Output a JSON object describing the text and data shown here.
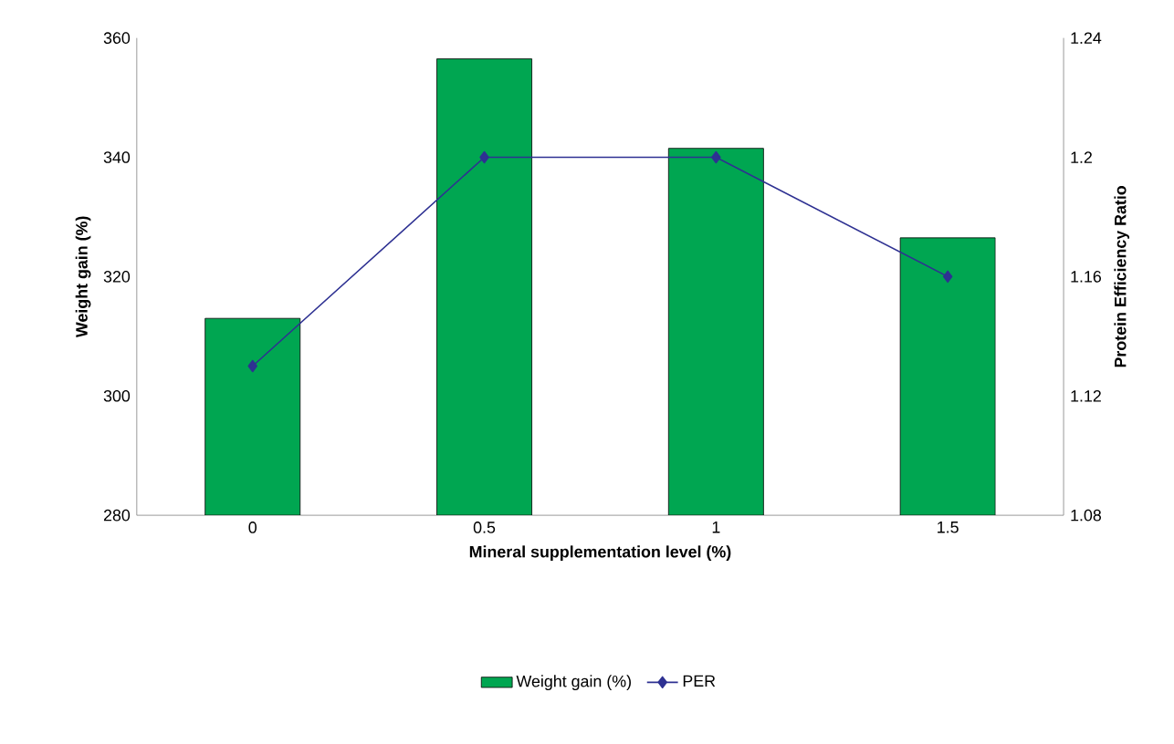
{
  "chart_data": {
    "type": "bar",
    "xlabel": "Mineral supplementation level (%)",
    "ylabel": "Weight gain (%)",
    "y2label": "Protein Efficiency Ratio",
    "categories": [
      "0",
      "0.5",
      "1",
      "1.5"
    ],
    "series": [
      {
        "name": "Weight gain (%)",
        "color": "#00a651",
        "values": [
          313,
          356.5,
          341.5,
          326.5
        ]
      },
      {
        "name": "PER",
        "type": "line",
        "axis": "y2",
        "color": "#2e3192",
        "marker": "diamond",
        "values": [
          1.13,
          1.2,
          1.2,
          1.16
        ]
      }
    ],
    "ylim": [
      280,
      360
    ],
    "yticks": [
      280,
      300,
      320,
      340,
      360
    ],
    "y2lim": [
      1.08,
      1.24
    ],
    "y2ticks": [
      1.08,
      1.12,
      1.16,
      1.2,
      1.24
    ],
    "grid": false,
    "legend": "bottom"
  }
}
